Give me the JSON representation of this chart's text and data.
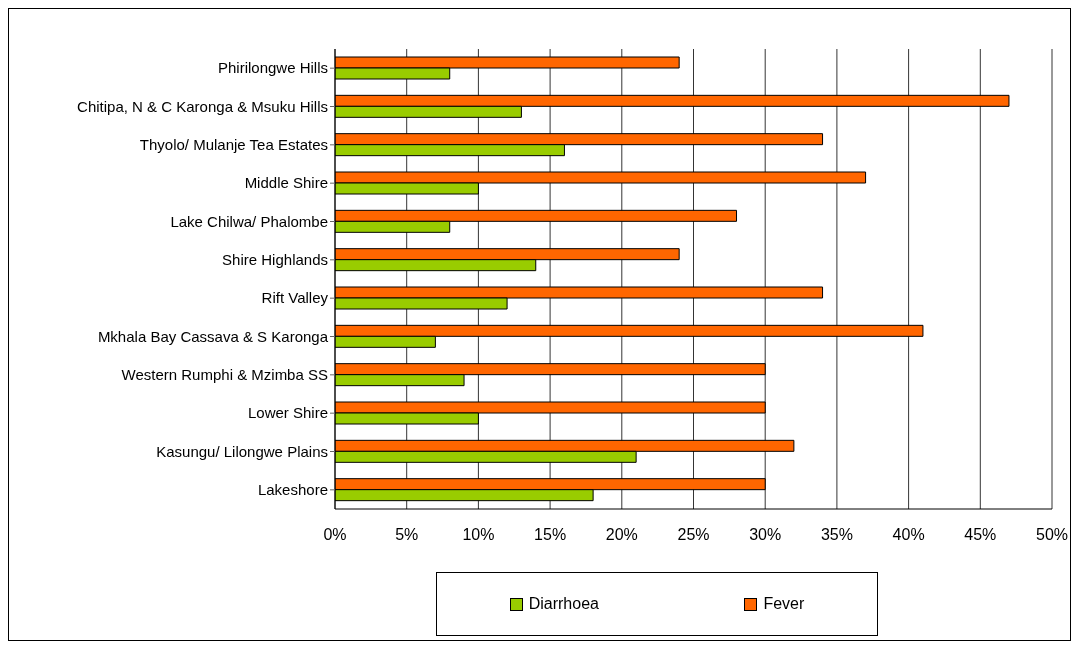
{
  "chart_data": {
    "type": "bar",
    "orientation": "horizontal",
    "categories": [
      "Phirilongwe Hills",
      "Chitipa, N & C Karonga & Msuku Hills",
      "Thyolo/ Mulanje Tea Estates",
      "Middle Shire",
      "Lake Chilwa/ Phalombe",
      "Shire Highlands",
      "Rift Valley",
      "Mkhala Bay Cassava & S Karonga",
      "Western Rumphi & Mzimba SS",
      "Lower Shire",
      "Kasungu/ Lilongwe Plains",
      "Lakeshore"
    ],
    "series": [
      {
        "name": "Diarrhoea",
        "color": "#99cc00",
        "values": [
          8,
          13,
          16,
          10,
          8,
          14,
          12,
          7,
          9,
          10,
          21,
          18
        ]
      },
      {
        "name": "Fever",
        "color": "#ff6600",
        "values": [
          24,
          47,
          34,
          37,
          28,
          24,
          34,
          41,
          30,
          30,
          32,
          30
        ]
      }
    ],
    "xlim": [
      0,
      50
    ],
    "xticks": [
      {
        "value": 0,
        "label": "0%"
      },
      {
        "value": 5,
        "label": "5%"
      },
      {
        "value": 10,
        "label": "10%"
      },
      {
        "value": 15,
        "label": "15%"
      },
      {
        "value": 20,
        "label": "20%"
      },
      {
        "value": 25,
        "label": "25%"
      },
      {
        "value": 30,
        "label": "30%"
      },
      {
        "value": 35,
        "label": "35%"
      },
      {
        "value": 40,
        "label": "40%"
      },
      {
        "value": 45,
        "label": "45%"
      },
      {
        "value": 50,
        "label": "50%"
      }
    ],
    "grid": "x",
    "legend": "bottom"
  }
}
